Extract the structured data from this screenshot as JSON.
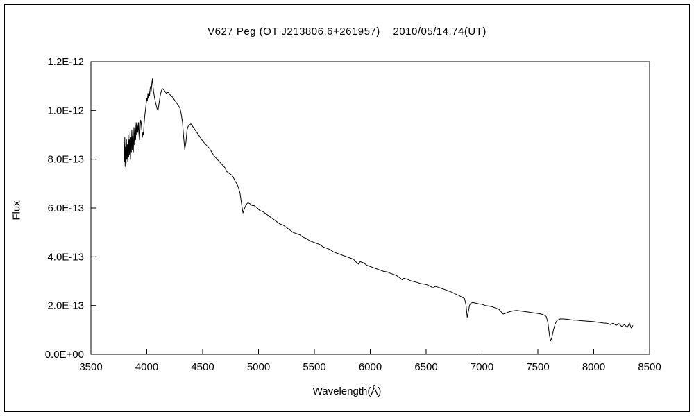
{
  "chart_data": {
    "type": "line",
    "title": "V627 Peg (OT J213806.6+261957)    2010/05/14.74(UT)",
    "xlabel": "Wavelength(Å)",
    "ylabel": "Flux",
    "legend": "none",
    "grid": false,
    "line_color": "#000000",
    "xlim": [
      3500,
      8500
    ],
    "ylim": [
      0,
      12
    ],
    "y_unit_scale": "1E-13",
    "x_ticks": [
      3500,
      4000,
      4500,
      5000,
      5500,
      6000,
      6500,
      7000,
      7500,
      8000,
      8500
    ],
    "y_ticks": [
      {
        "value": 0,
        "label": "0.0E+00"
      },
      {
        "value": 2,
        "label": "2.0E-13"
      },
      {
        "value": 4,
        "label": "4.0E-13"
      },
      {
        "value": 6,
        "label": "6.0E-13"
      },
      {
        "value": 8,
        "label": "8.0E-13"
      },
      {
        "value": 10,
        "label": "1.0E-12"
      },
      {
        "value": 12,
        "label": "1.2E-12"
      }
    ],
    "points": [
      [
        3795,
        8.7
      ],
      [
        3800,
        7.9
      ],
      [
        3803,
        8.9
      ],
      [
        3806,
        7.7
      ],
      [
        3810,
        8.5
      ],
      [
        3814,
        7.8
      ],
      [
        3818,
        8.8
      ],
      [
        3822,
        8.0
      ],
      [
        3826,
        8.6
      ],
      [
        3830,
        7.9
      ],
      [
        3834,
        9.0
      ],
      [
        3838,
        8.1
      ],
      [
        3842,
        8.8
      ],
      [
        3846,
        8.2
      ],
      [
        3850,
        9.1
      ],
      [
        3854,
        8.0
      ],
      [
        3858,
        8.9
      ],
      [
        3862,
        8.3
      ],
      [
        3866,
        9.2
      ],
      [
        3870,
        8.4
      ],
      [
        3875,
        9.0
      ],
      [
        3880,
        8.3
      ],
      [
        3885,
        9.3
      ],
      [
        3890,
        8.6
      ],
      [
        3895,
        9.4
      ],
      [
        3900,
        8.8
      ],
      [
        3905,
        9.5
      ],
      [
        3910,
        9.0
      ],
      [
        3915,
        9.4
      ],
      [
        3920,
        9.1
      ],
      [
        3925,
        9.5
      ],
      [
        3930,
        9.0
      ],
      [
        3935,
        8.8
      ],
      [
        3940,
        9.3
      ],
      [
        3945,
        9.6
      ],
      [
        3950,
        9.5
      ],
      [
        3955,
        9.2
      ],
      [
        3960,
        8.9
      ],
      [
        3965,
        9.1
      ],
      [
        3970,
        9.0
      ],
      [
        3975,
        9.4
      ],
      [
        3980,
        9.7
      ],
      [
        3985,
        9.9
      ],
      [
        3990,
        10.1
      ],
      [
        3995,
        10.3
      ],
      [
        4000,
        10.5
      ],
      [
        4005,
        10.4
      ],
      [
        4010,
        10.7
      ],
      [
        4015,
        10.5
      ],
      [
        4020,
        10.8
      ],
      [
        4025,
        10.6
      ],
      [
        4030,
        10.9
      ],
      [
        4035,
        11.0
      ],
      [
        4040,
        10.8
      ],
      [
        4045,
        11.1
      ],
      [
        4050,
        11.3
      ],
      [
        4055,
        11.0
      ],
      [
        4060,
        10.8
      ],
      [
        4070,
        10.5
      ],
      [
        4080,
        10.3
      ],
      [
        4090,
        10.1
      ],
      [
        4100,
        10.0
      ],
      [
        4110,
        10.3
      ],
      [
        4120,
        10.6
      ],
      [
        4130,
        10.8
      ],
      [
        4140,
        10.9
      ],
      [
        4150,
        10.85
      ],
      [
        4160,
        10.8
      ],
      [
        4175,
        10.7
      ],
      [
        4190,
        10.75
      ],
      [
        4200,
        10.7
      ],
      [
        4215,
        10.6
      ],
      [
        4230,
        10.55
      ],
      [
        4245,
        10.45
      ],
      [
        4260,
        10.35
      ],
      [
        4275,
        10.25
      ],
      [
        4290,
        10.15
      ],
      [
        4300,
        10.05
      ],
      [
        4310,
        9.8
      ],
      [
        4320,
        9.5
      ],
      [
        4330,
        8.9
      ],
      [
        4340,
        8.4
      ],
      [
        4350,
        8.7
      ],
      [
        4360,
        9.2
      ],
      [
        4370,
        9.35
      ],
      [
        4380,
        9.4
      ],
      [
        4395,
        9.45
      ],
      [
        4410,
        9.35
      ],
      [
        4425,
        9.25
      ],
      [
        4440,
        9.15
      ],
      [
        4455,
        9.05
      ],
      [
        4470,
        8.95
      ],
      [
        4485,
        8.85
      ],
      [
        4500,
        8.75
      ],
      [
        4520,
        8.65
      ],
      [
        4540,
        8.55
      ],
      [
        4560,
        8.45
      ],
      [
        4580,
        8.3
      ],
      [
        4600,
        8.15
      ],
      [
        4620,
        8.05
      ],
      [
        4640,
        7.95
      ],
      [
        4660,
        7.85
      ],
      [
        4680,
        7.75
      ],
      [
        4700,
        7.65
      ],
      [
        4715,
        7.5
      ],
      [
        4730,
        7.45
      ],
      [
        4745,
        7.4
      ],
      [
        4760,
        7.35
      ],
      [
        4775,
        7.25
      ],
      [
        4790,
        7.1
      ],
      [
        4805,
        7.0
      ],
      [
        4820,
        6.85
      ],
      [
        4835,
        6.6
      ],
      [
        4850,
        6.1
      ],
      [
        4861,
        5.8
      ],
      [
        4872,
        5.95
      ],
      [
        4885,
        6.1
      ],
      [
        4900,
        6.2
      ],
      [
        4915,
        6.2
      ],
      [
        4930,
        6.15
      ],
      [
        4945,
        6.1
      ],
      [
        4960,
        6.1
      ],
      [
        4975,
        6.05
      ],
      [
        4990,
        6.0
      ],
      [
        5010,
        5.9
      ],
      [
        5040,
        5.85
      ],
      [
        5070,
        5.75
      ],
      [
        5100,
        5.65
      ],
      [
        5130,
        5.55
      ],
      [
        5160,
        5.45
      ],
      [
        5190,
        5.35
      ],
      [
        5220,
        5.3
      ],
      [
        5250,
        5.2
      ],
      [
        5280,
        5.1
      ],
      [
        5310,
        5.0
      ],
      [
        5340,
        4.95
      ],
      [
        5370,
        4.9
      ],
      [
        5400,
        4.8
      ],
      [
        5430,
        4.75
      ],
      [
        5460,
        4.65
      ],
      [
        5490,
        4.6
      ],
      [
        5520,
        4.55
      ],
      [
        5550,
        4.5
      ],
      [
        5580,
        4.4
      ],
      [
        5610,
        4.35
      ],
      [
        5640,
        4.3
      ],
      [
        5670,
        4.2
      ],
      [
        5700,
        4.15
      ],
      [
        5730,
        4.1
      ],
      [
        5760,
        4.05
      ],
      [
        5790,
        4.0
      ],
      [
        5820,
        3.95
      ],
      [
        5850,
        3.9
      ],
      [
        5880,
        3.75
      ],
      [
        5895,
        3.7
      ],
      [
        5910,
        3.8
      ],
      [
        5940,
        3.75
      ],
      [
        5970,
        3.65
      ],
      [
        6000,
        3.6
      ],
      [
        6030,
        3.55
      ],
      [
        6060,
        3.5
      ],
      [
        6090,
        3.45
      ],
      [
        6120,
        3.4
      ],
      [
        6150,
        3.38
      ],
      [
        6180,
        3.32
      ],
      [
        6210,
        3.28
      ],
      [
        6240,
        3.22
      ],
      [
        6270,
        3.12
      ],
      [
        6285,
        3.05
      ],
      [
        6300,
        3.12
      ],
      [
        6330,
        3.08
      ],
      [
        6360,
        3.02
      ],
      [
        6390,
        2.98
      ],
      [
        6420,
        2.95
      ],
      [
        6450,
        2.9
      ],
      [
        6480,
        2.88
      ],
      [
        6510,
        2.85
      ],
      [
        6540,
        2.78
      ],
      [
        6563,
        2.72
      ],
      [
        6580,
        2.78
      ],
      [
        6610,
        2.75
      ],
      [
        6640,
        2.7
      ],
      [
        6670,
        2.65
      ],
      [
        6700,
        2.6
      ],
      [
        6730,
        2.55
      ],
      [
        6760,
        2.48
      ],
      [
        6790,
        2.42
      ],
      [
        6820,
        2.35
      ],
      [
        6845,
        2.28
      ],
      [
        6858,
        2.0
      ],
      [
        6868,
        1.52
      ],
      [
        6878,
        1.75
      ],
      [
        6888,
        2.0
      ],
      [
        6900,
        2.1
      ],
      [
        6920,
        2.12
      ],
      [
        6940,
        2.1
      ],
      [
        6960,
        2.08
      ],
      [
        6980,
        2.06
      ],
      [
        7000,
        2.05
      ],
      [
        7030,
        2.0
      ],
      [
        7060,
        1.98
      ],
      [
        7090,
        1.95
      ],
      [
        7120,
        1.9
      ],
      [
        7150,
        1.85
      ],
      [
        7170,
        1.75
      ],
      [
        7190,
        1.65
      ],
      [
        7210,
        1.68
      ],
      [
        7230,
        1.72
      ],
      [
        7250,
        1.75
      ],
      [
        7280,
        1.78
      ],
      [
        7310,
        1.8
      ],
      [
        7340,
        1.78
      ],
      [
        7370,
        1.76
      ],
      [
        7400,
        1.74
      ],
      [
        7430,
        1.72
      ],
      [
        7460,
        1.7
      ],
      [
        7490,
        1.68
      ],
      [
        7520,
        1.66
      ],
      [
        7550,
        1.62
      ],
      [
        7575,
        1.55
      ],
      [
        7590,
        1.3
      ],
      [
        7605,
        0.75
      ],
      [
        7615,
        0.55
      ],
      [
        7625,
        0.68
      ],
      [
        7640,
        1.0
      ],
      [
        7655,
        1.25
      ],
      [
        7670,
        1.38
      ],
      [
        7685,
        1.42
      ],
      [
        7700,
        1.45
      ],
      [
        7730,
        1.45
      ],
      [
        7760,
        1.44
      ],
      [
        7790,
        1.42
      ],
      [
        7820,
        1.4
      ],
      [
        7850,
        1.4
      ],
      [
        7880,
        1.38
      ],
      [
        7910,
        1.37
      ],
      [
        7940,
        1.36
      ],
      [
        7970,
        1.35
      ],
      [
        8000,
        1.34
      ],
      [
        8030,
        1.32
      ],
      [
        8060,
        1.3
      ],
      [
        8090,
        1.28
      ],
      [
        8120,
        1.27
      ],
      [
        8150,
        1.22
      ],
      [
        8175,
        1.28
      ],
      [
        8200,
        1.18
      ],
      [
        8225,
        1.26
      ],
      [
        8250,
        1.14
      ],
      [
        8275,
        1.22
      ],
      [
        8300,
        1.1
      ],
      [
        8320,
        1.28
      ],
      [
        8335,
        1.08
      ],
      [
        8350,
        1.18
      ]
    ]
  }
}
